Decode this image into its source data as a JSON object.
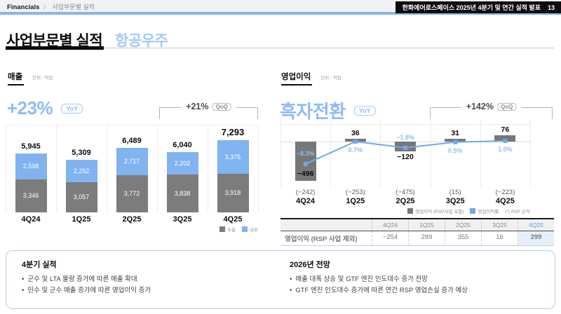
{
  "breadcrumb": {
    "root": "Financials",
    "sep": "〉",
    "current": "사업부문별 실적"
  },
  "topbar": {
    "deck_title": "한화에어로스페이스 2025년 4분기 및 연간 실적 발표",
    "page_number": "13"
  },
  "title": {
    "main": "사업부문별 실적",
    "section": "항공우주"
  },
  "colors": {
    "accent_blue_text": "#8FBCF3",
    "bar_blue": "#80B3F0",
    "bar_gray": "#7C7C7C",
    "op_bar_gray": "#777777",
    "line_blue": "#6FA8EC",
    "table_highlight_bg": "#E4EFFB",
    "table_highlight_text": "#5B9BE6",
    "header_rule_blue": "#84B6EF"
  },
  "revenue": {
    "label": "매출",
    "unit": "단위 : 억원",
    "headline": "+23%",
    "headline_badge": "YoY",
    "qoq_label": "+21%",
    "qoq_badge": "QoQ"
  },
  "op": {
    "label": "영업이익",
    "unit": "단위 : 억원",
    "headline": "흑자전환",
    "headline_badge": "YoY",
    "qoq_label": "+142%",
    "qoq_badge": "QoQ",
    "legend_note": "(*) RSP 손익",
    "table": {
      "row_label": "영업이익 (RSP 사업 제외)",
      "columns": [
        "4Q24",
        "1Q25",
        "2Q25",
        "3Q25",
        "4Q25"
      ],
      "values": [
        "−254",
        "289",
        "355",
        "16",
        "299"
      ],
      "highlight_col": 4
    }
  },
  "chart_data": [
    {
      "type": "bar",
      "title": "매출",
      "ylabel": "억원",
      "categories": [
        "4Q24",
        "1Q25",
        "2Q25",
        "3Q25",
        "4Q25"
      ],
      "series": [
        {
          "name": "수출",
          "color": "#7C7C7C",
          "values": [
            3346,
            3057,
            3772,
            3838,
            3918
          ]
        },
        {
          "name": "내수",
          "color": "#80B3F0",
          "values": [
            2598,
            2252,
            2717,
            2202,
            3375
          ]
        }
      ],
      "totals": [
        5945,
        5309,
        6489,
        6040,
        7293
      ],
      "stacked": true,
      "legend_position": "bottom-right",
      "annotations": [
        "+23% YoY",
        "+21% QoQ"
      ]
    },
    {
      "type": "bar+line",
      "title": "영업이익",
      "ylabel": "억원",
      "categories": [
        "4Q24",
        "1Q25",
        "2Q25",
        "3Q25",
        "4Q25"
      ],
      "bar_series": {
        "name": "영업이익 (RSP사업 포함)",
        "color": "#777777",
        "values": [
          -496,
          36,
          -120,
          31,
          76
        ]
      },
      "line_series": {
        "name": "영업이익률",
        "color": "#6FA8EC",
        "values_pct": [
          -8.3,
          0.7,
          -1.8,
          0.5,
          1.0
        ]
      },
      "rsp_values": [
        "(−242)",
        "(−253)",
        "(−475)",
        "(15)",
        "(−223)"
      ],
      "legend_position": "bottom-right",
      "annotations": [
        "흑자전환 YoY",
        "+142% QoQ"
      ]
    }
  ],
  "notes": {
    "left": {
      "title": "4분기 실적",
      "bullets": [
        "군수 및 LTA 물량 증가에 따른 매출 확대",
        "민수 및 군수 매출 증가에 따른 영업이익 증가"
      ]
    },
    "right": {
      "title": "2026년 전망",
      "bullets": [
        "매출 대폭 상승 및 GTF 엔진 인도대수 증가 전망",
        "GTF 엔진 인도대수 증가에 따른 연간 RSP 영업손실 증가 예상"
      ]
    }
  }
}
